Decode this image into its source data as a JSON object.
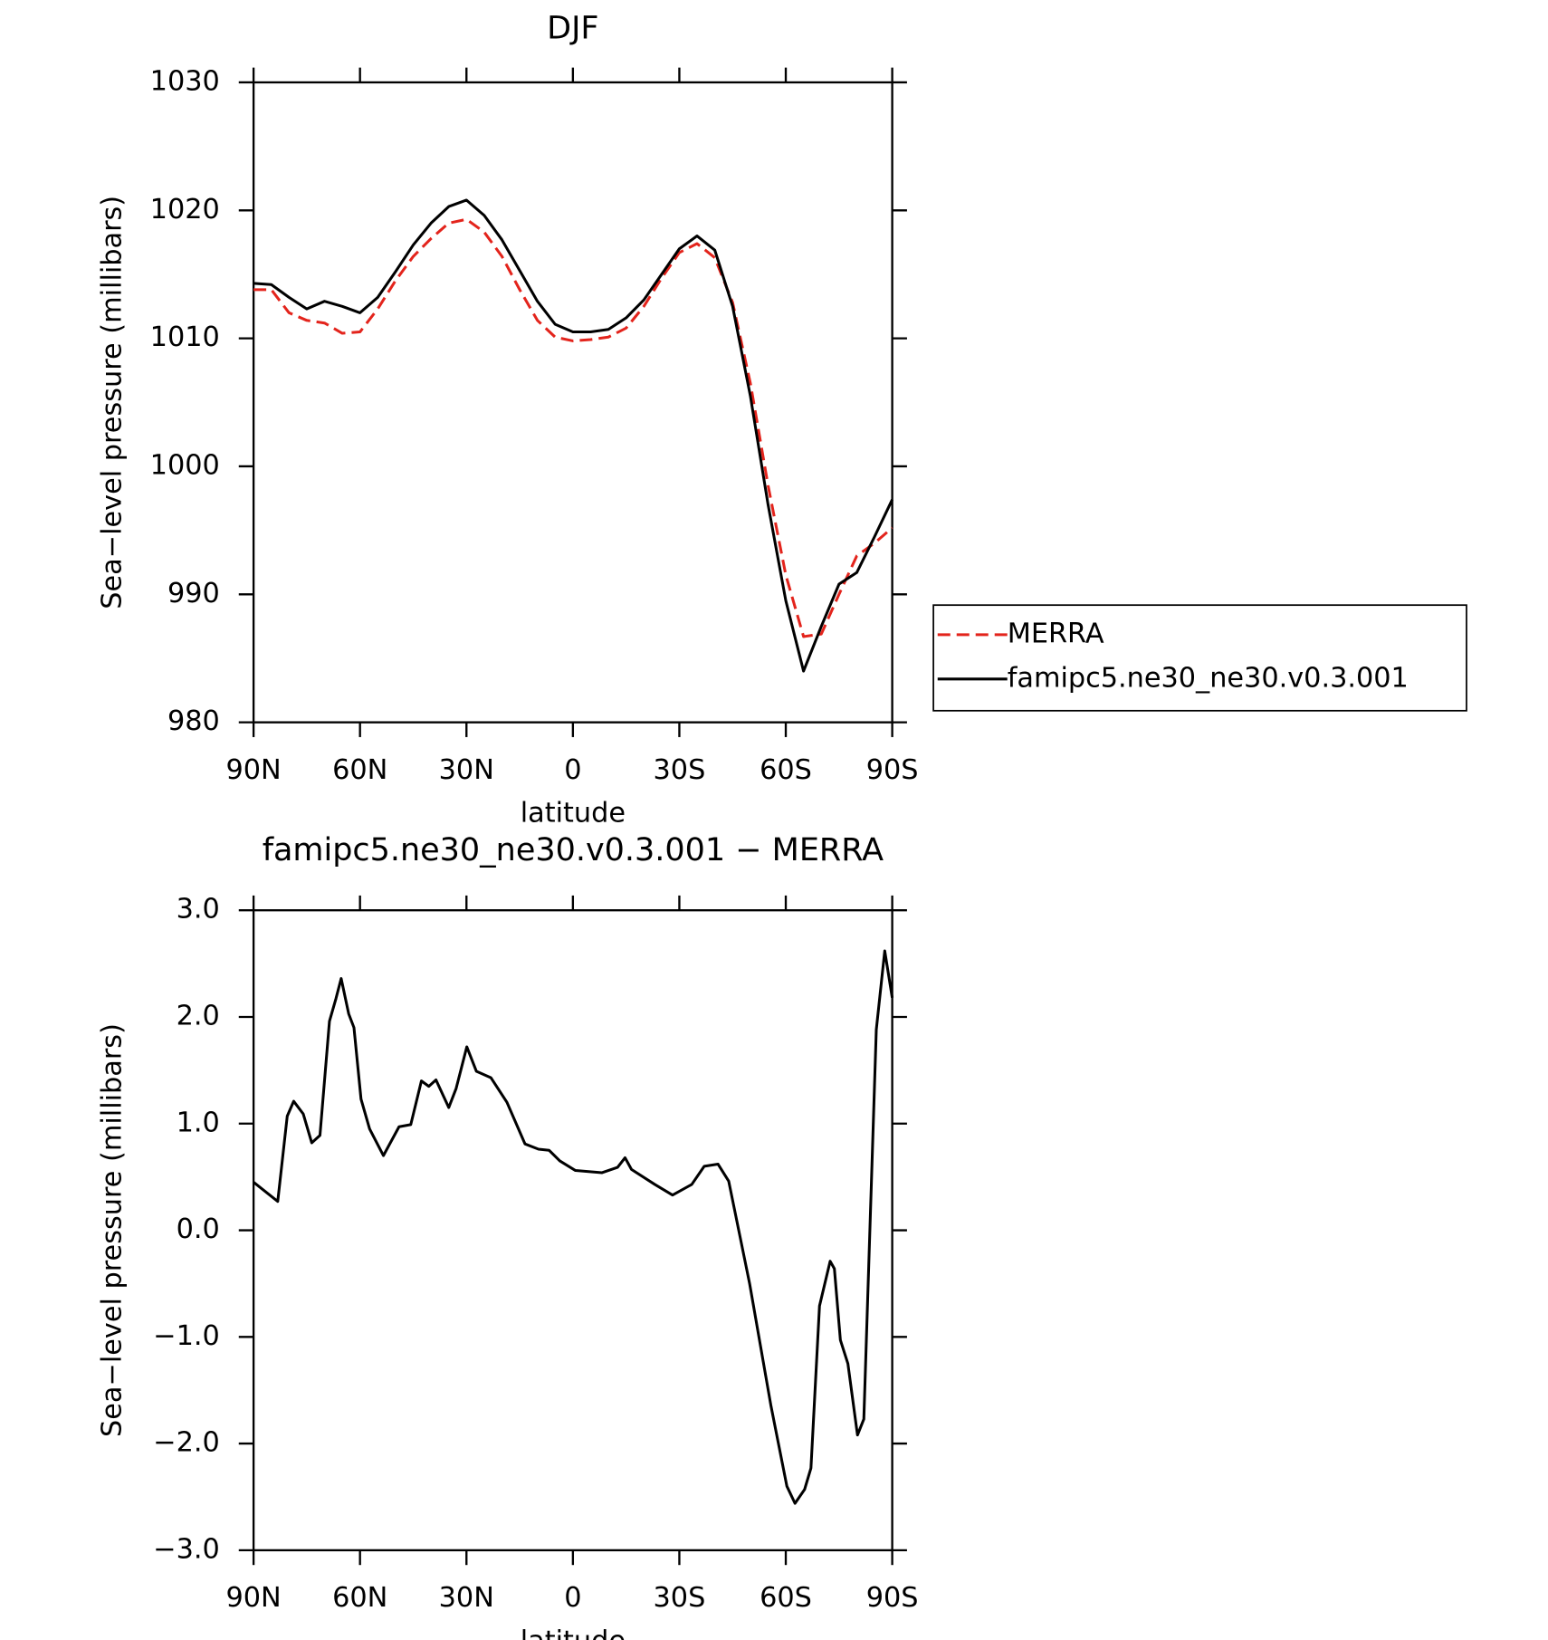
{
  "chart_data": [
    {
      "type": "line",
      "title": "DJF",
      "xlabel": "latitude",
      "ylabel": "Sea−level pressure (millibars)",
      "x": [
        90,
        85,
        80,
        75,
        70,
        65,
        60,
        55,
        50,
        45,
        40,
        35,
        30,
        25,
        20,
        15,
        10,
        5,
        0,
        -5,
        -10,
        -15,
        -20,
        -25,
        -30,
        -35,
        -40,
        -45,
        -50,
        -55,
        -60,
        -65,
        -70,
        -75,
        -80,
        -85,
        -90
      ],
      "series": [
        {
          "name": "MERRA",
          "color": "#e3241c",
          "linestyle": "dashed",
          "values": [
            1013.8,
            1013.8,
            1012.0,
            1011.4,
            1011.2,
            1010.4,
            1010.5,
            1012.3,
            1014.5,
            1016.4,
            1017.8,
            1019.0,
            1019.3,
            1018.3,
            1016.4,
            1013.8,
            1011.4,
            1010.1,
            1009.8,
            1009.9,
            1010.1,
            1010.8,
            1012.5,
            1014.7,
            1016.7,
            1017.4,
            1016.3,
            1012.8,
            1006.5,
            998.5,
            991.5,
            986.7,
            986.9,
            990.0,
            993.0,
            994.0,
            995.2
          ]
        },
        {
          "name": "famipc5.ne30_ne30.v0.3.001",
          "color": "#000000",
          "linestyle": "solid",
          "values": [
            1014.3,
            1014.2,
            1013.2,
            1012.3,
            1012.9,
            1012.5,
            1012.0,
            1013.2,
            1015.2,
            1017.3,
            1019.0,
            1020.3,
            1020.8,
            1019.6,
            1017.7,
            1015.3,
            1012.9,
            1011.1,
            1010.5,
            1010.5,
            1010.7,
            1011.6,
            1013.0,
            1015.0,
            1017.0,
            1018.0,
            1016.9,
            1012.5,
            1005.5,
            997.0,
            989.5,
            984.0,
            987.5,
            990.8,
            991.7,
            994.5,
            997.4
          ]
        }
      ],
      "xlim": [
        90,
        -90
      ],
      "xticks": [
        {
          "value": 90,
          "label": "90N"
        },
        {
          "value": 60,
          "label": "60N"
        },
        {
          "value": 30,
          "label": "30N"
        },
        0,
        {
          "value": -30,
          "label": "30S"
        },
        {
          "value": -60,
          "label": "60S"
        },
        {
          "value": -90,
          "label": "90S"
        }
      ],
      "ylim": [
        980,
        1030
      ],
      "yticks": [
        980,
        990,
        1000,
        1010,
        1020,
        1030
      ],
      "legend_position": "right"
    },
    {
      "type": "line",
      "title": "famipc5.ne30_ne30.v0.3.001 − MERRA",
      "xlabel": "latitude",
      "ylabel": "Sea−level pressure (millibars)",
      "x": [
        90,
        83.2,
        80.5,
        78.7,
        76,
        73.6,
        71.3,
        68.6,
        66.8,
        65.3,
        63.2,
        61.7,
        59.7,
        57.3,
        53.4,
        49,
        45.7,
        42.7,
        40.6,
        38.6,
        35,
        32.9,
        29.9,
        27.2,
        23.1,
        18.6,
        13.5,
        9.7,
        6.7,
        3.7,
        -0.7,
        -8.2,
        -12.6,
        -14.7,
        -16.5,
        -23.1,
        -28.1,
        -33.5,
        -37,
        -40.9,
        -43.9,
        -49.8,
        -55.8,
        -60.3,
        -62.6,
        -65.3,
        -67.1,
        -69.5,
        -72.5,
        -73.7,
        -75.4,
        -77.5,
        -80.2,
        -82,
        -85.5,
        -87.9,
        -90
      ],
      "series": [
        {
          "color": "#000000",
          "linestyle": "solid",
          "values": [
            0.45,
            0.27,
            1.07,
            1.21,
            1.09,
            0.82,
            0.89,
            1.96,
            2.17,
            2.36,
            2.03,
            1.9,
            1.23,
            0.95,
            0.7,
            0.97,
            0.99,
            1.4,
            1.35,
            1.41,
            1.15,
            1.33,
            1.72,
            1.49,
            1.43,
            1.2,
            0.81,
            0.76,
            0.75,
            0.65,
            0.56,
            0.54,
            0.59,
            0.68,
            0.57,
            0.43,
            0.33,
            0.43,
            0.6,
            0.62,
            0.46,
            -0.5,
            -1.64,
            -2.4,
            -2.56,
            -2.43,
            -2.23,
            -0.71,
            -0.29,
            -0.36,
            -1.03,
            -1.25,
            -1.92,
            -1.77,
            1.88,
            2.62,
            2.18
          ]
        }
      ],
      "xlim": [
        90,
        -90
      ],
      "xticks": [
        {
          "value": 90,
          "label": "90N"
        },
        {
          "value": 60,
          "label": "60N"
        },
        {
          "value": 30,
          "label": "30N"
        },
        0,
        {
          "value": -30,
          "label": "30S"
        },
        {
          "value": -60,
          "label": "60S"
        },
        {
          "value": -90,
          "label": "90S"
        }
      ],
      "ylim": [
        -3,
        3
      ],
      "yticks": [
        {
          "value": -3,
          "label": "−3.0"
        },
        {
          "value": -2,
          "label": "−2.0"
        },
        {
          "value": -1,
          "label": "−1.0"
        },
        {
          "value": 0,
          "label": "0.0"
        },
        {
          "value": 1,
          "label": "1.0"
        },
        {
          "value": 2,
          "label": "2.0"
        },
        {
          "value": 3,
          "label": "3.0"
        }
      ]
    }
  ]
}
